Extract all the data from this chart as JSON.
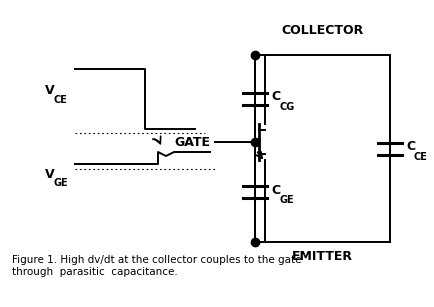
{
  "bg_color": "#ffffff",
  "collector_text": "COLLECTOR",
  "gate_text": "GATE",
  "emitter_text": "EMITTER",
  "vce_label": "V",
  "vce_sub": "CE",
  "vge_label": "V",
  "vge_sub": "GE",
  "ccg_label": "C",
  "ccg_sub": "CG",
  "cge_label": "C",
  "cge_sub": "GE",
  "cce_label": "C",
  "cce_sub": "CE",
  "caption_line1": "Figure 1. High dv/dt at the collector couples to the gate",
  "caption_line2": "through  parasitic  capacitance.",
  "line_color": "#000000"
}
